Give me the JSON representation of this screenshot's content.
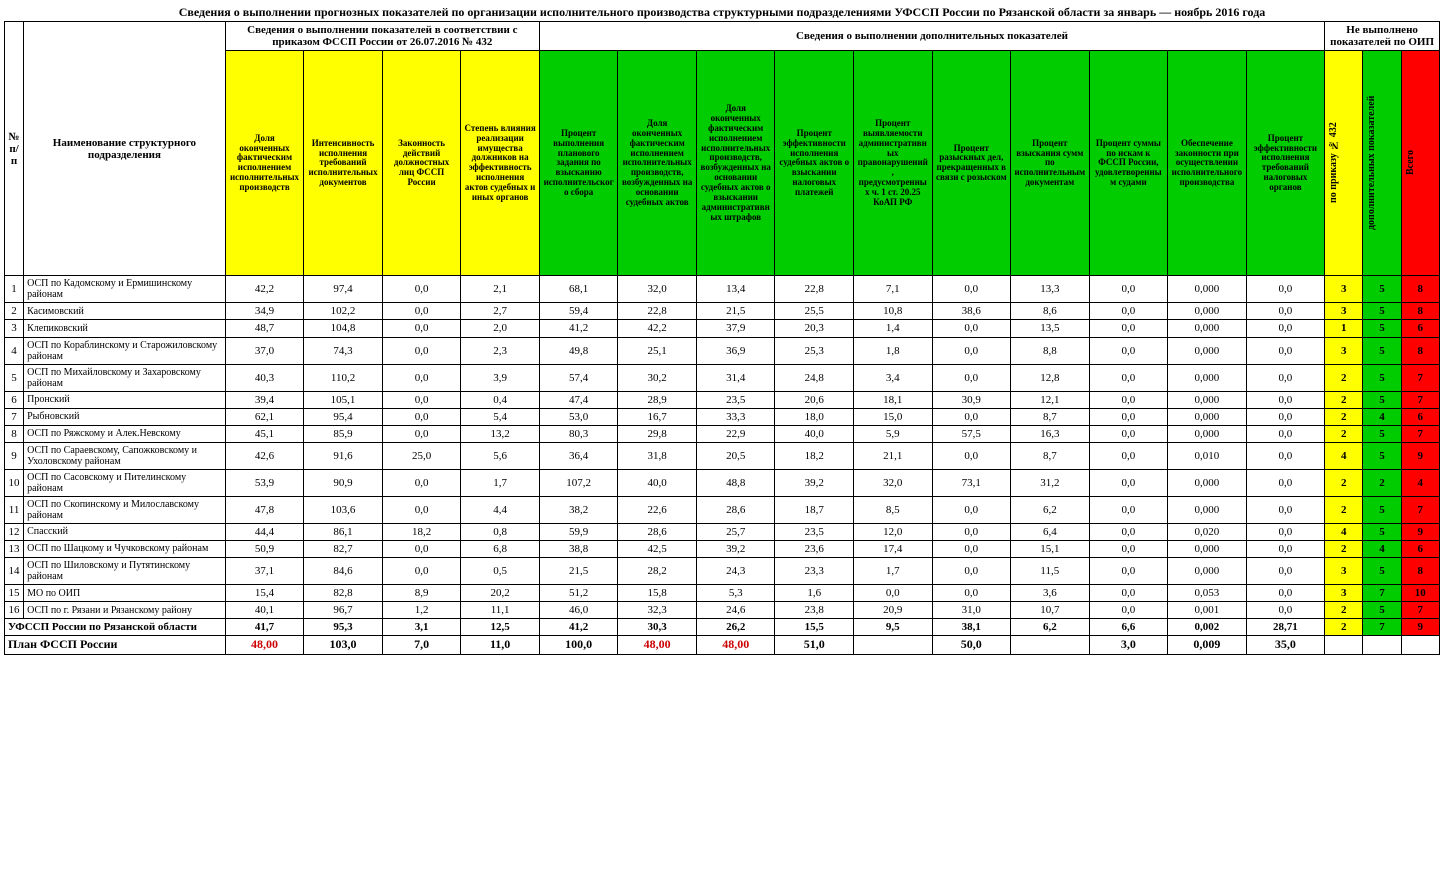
{
  "title": "Сведения о выполнении прогнозных показателей по организации исполнительного производства структурными подразделениями УФССП России по Рязанской области за январь — ноябрь  2016 года",
  "header": {
    "npp": "№ п/п",
    "name": "Наименование структурного подразделения",
    "group1": "Сведения о выполнении показателей в соответствии с приказом ФССП России от 26.07.2016 № 432",
    "group2": "Сведения о выполнении дополнительных показателей",
    "group3": "Не выполнено показателей по ОИП",
    "c1": "Доля оконченных фактическим исполнением исполнительных производств",
    "c2": "Интенсивность исполнения требований исполнительных документов",
    "c3": "Законность действий должностных лиц ФССП России",
    "c4": "Степень влияния реализации имущества должников на эффективность исполнения актов судебных и иных органов",
    "c5": "Процент выполнения планового задания по взысканию исполнительского сбора",
    "c6": "Доля оконченных фактическим исполнением исполнительных производств, возбужденных на основании судебных актов",
    "c7": "Доля оконченных фактическим исполнением исполнительных производств, возбужденных на основании судебных актов о взыскании административных штрафов",
    "c8": "Процент эффективности исполнения судебных актов о взыскании налоговых платежей",
    "c9": "Процент выявляемости административных правонарушений, предусмотренных ч. 1 ст. 20.25 КоАП РФ",
    "c10": "Процент разыскных дел, прекращенных в связи с розыском",
    "c11": "Процент взыскания сумм по исполнительным документам",
    "c12": "Процент суммы по искам к ФССП России, удовлетворенным судами",
    "c13": "Обеспечение законности при осуществлении исполнительного производства",
    "c14": "Процент эффективности исполнения требований налоговых органов",
    "s1": "по приказу № 432",
    "s2": "дополнительных показателей",
    "s3": "Всего"
  },
  "rows": [
    {
      "n": "1",
      "name": "ОСП по Кадомскому и Ермишинскому районам",
      "v": [
        "42,2",
        "97,4",
        "0,0",
        "2,1",
        "68,1",
        "32,0",
        "13,4",
        "22,8",
        "7,1",
        "0,0",
        "13,3",
        "0,0",
        "0,000",
        "0,0"
      ],
      "s": [
        "3",
        "5",
        "8"
      ]
    },
    {
      "n": "2",
      "name": "Касимовский",
      "v": [
        "34,9",
        "102,2",
        "0,0",
        "2,7",
        "59,4",
        "22,8",
        "21,5",
        "25,5",
        "10,8",
        "38,6",
        "8,6",
        "0,0",
        "0,000",
        "0,0"
      ],
      "s": [
        "3",
        "5",
        "8"
      ]
    },
    {
      "n": "3",
      "name": "Клепиковский",
      "v": [
        "48,7",
        "104,8",
        "0,0",
        "2,0",
        "41,2",
        "42,2",
        "37,9",
        "20,3",
        "1,4",
        "0,0",
        "13,5",
        "0,0",
        "0,000",
        "0,0"
      ],
      "s": [
        "1",
        "5",
        "6"
      ]
    },
    {
      "n": "4",
      "name": "ОСП по Кораблинскому и Старожиловскому районам",
      "v": [
        "37,0",
        "74,3",
        "0,0",
        "2,3",
        "49,8",
        "25,1",
        "36,9",
        "25,3",
        "1,8",
        "0,0",
        "8,8",
        "0,0",
        "0,000",
        "0,0"
      ],
      "s": [
        "3",
        "5",
        "8"
      ]
    },
    {
      "n": "5",
      "name": "ОСП по Михайловскому и Захаровскому районам",
      "v": [
        "40,3",
        "110,2",
        "0,0",
        "3,9",
        "57,4",
        "30,2",
        "31,4",
        "24,8",
        "3,4",
        "0,0",
        "12,8",
        "0,0",
        "0,000",
        "0,0"
      ],
      "s": [
        "2",
        "5",
        "7"
      ]
    },
    {
      "n": "6",
      "name": "Пронский",
      "v": [
        "39,4",
        "105,1",
        "0,0",
        "0,4",
        "47,4",
        "28,9",
        "23,5",
        "20,6",
        "18,1",
        "30,9",
        "12,1",
        "0,0",
        "0,000",
        "0,0"
      ],
      "s": [
        "2",
        "5",
        "7"
      ]
    },
    {
      "n": "7",
      "name": "Рыбновский",
      "v": [
        "62,1",
        "95,4",
        "0,0",
        "5,4",
        "53,0",
        "16,7",
        "33,3",
        "18,0",
        "15,0",
        "0,0",
        "8,7",
        "0,0",
        "0,000",
        "0,0"
      ],
      "s": [
        "2",
        "4",
        "6"
      ]
    },
    {
      "n": "8",
      "name": "ОСП по Ряжскому и Алек.Невскому",
      "v": [
        "45,1",
        "85,9",
        "0,0",
        "13,2",
        "80,3",
        "29,8",
        "22,9",
        "40,0",
        "5,9",
        "57,5",
        "16,3",
        "0,0",
        "0,000",
        "0,0"
      ],
      "s": [
        "2",
        "5",
        "7"
      ]
    },
    {
      "n": "9",
      "name": "ОСП по Сараевскому, Сапожковскому и Ухоловскому районам",
      "v": [
        "42,6",
        "91,6",
        "25,0",
        "5,6",
        "36,4",
        "31,8",
        "20,5",
        "18,2",
        "21,1",
        "0,0",
        "8,7",
        "0,0",
        "0,010",
        "0,0"
      ],
      "s": [
        "4",
        "5",
        "9"
      ]
    },
    {
      "n": "10",
      "name": "ОСП по Сасовскому и Пителинскому районам",
      "v": [
        "53,9",
        "90,9",
        "0,0",
        "1,7",
        "107,2",
        "40,0",
        "48,8",
        "39,2",
        "32,0",
        "73,1",
        "31,2",
        "0,0",
        "0,000",
        "0,0"
      ],
      "s": [
        "2",
        "2",
        "4"
      ]
    },
    {
      "n": "11",
      "name": "ОСП по Скопинскому и Милославскому районам",
      "v": [
        "47,8",
        "103,6",
        "0,0",
        "4,4",
        "38,2",
        "22,6",
        "28,6",
        "18,7",
        "8,5",
        "0,0",
        "6,2",
        "0,0",
        "0,000",
        "0,0"
      ],
      "s": [
        "2",
        "5",
        "7"
      ]
    },
    {
      "n": "12",
      "name": "Спасский",
      "v": [
        "44,4",
        "86,1",
        "18,2",
        "0,8",
        "59,9",
        "28,6",
        "25,7",
        "23,5",
        "12,0",
        "0,0",
        "6,4",
        "0,0",
        "0,020",
        "0,0"
      ],
      "s": [
        "4",
        "5",
        "9"
      ]
    },
    {
      "n": "13",
      "name": "ОСП по Шацкому и Чучковскому районам",
      "v": [
        "50,9",
        "82,7",
        "0,0",
        "6,8",
        "38,8",
        "42,5",
        "39,2",
        "23,6",
        "17,4",
        "0,0",
        "15,1",
        "0,0",
        "0,000",
        "0,0"
      ],
      "s": [
        "2",
        "4",
        "6"
      ]
    },
    {
      "n": "14",
      "name": "ОСП по Шиловскому и Путятинскому районам",
      "v": [
        "37,1",
        "84,6",
        "0,0",
        "0,5",
        "21,5",
        "28,2",
        "24,3",
        "23,3",
        "1,7",
        "0,0",
        "11,5",
        "0,0",
        "0,000",
        "0,0"
      ],
      "s": [
        "3",
        "5",
        "8"
      ]
    },
    {
      "n": "15",
      "name": "МО по ОИП",
      "v": [
        "15,4",
        "82,8",
        "8,9",
        "20,2",
        "51,2",
        "15,8",
        "5,3",
        "1,6",
        "0,0",
        "0,0",
        "3,6",
        "0,0",
        "0,053",
        "0,0"
      ],
      "s": [
        "3",
        "7",
        "10"
      ]
    },
    {
      "n": "16",
      "name": "ОСП по г. Рязани и Рязанскому району",
      "v": [
        "40,1",
        "96,7",
        "1,2",
        "11,1",
        "46,0",
        "32,3",
        "24,6",
        "23,8",
        "20,9",
        "31,0",
        "10,7",
        "0,0",
        "0,001",
        "0,0"
      ],
      "s": [
        "2",
        "5",
        "7"
      ]
    }
  ],
  "summary": {
    "name": "УФССП России по Рязанской области",
    "v": [
      "41,7",
      "95,3",
      "3,1",
      "12,5",
      "41,2",
      "30,3",
      "26,2",
      "15,5",
      "9,5",
      "38,1",
      "6,2",
      "6,6",
      "0,002",
      "28,71"
    ],
    "s": [
      "2",
      "7",
      "9"
    ]
  },
  "plan": {
    "name": "План ФССП России",
    "v": [
      "48,00",
      "103,0",
      "7,0",
      "11,0",
      "100,0",
      "48,00",
      "48,00",
      "51,0",
      "",
      "50,0",
      "",
      "3,0",
      "0,009",
      "35,0"
    ],
    "redcols": [
      0,
      5,
      6
    ]
  }
}
